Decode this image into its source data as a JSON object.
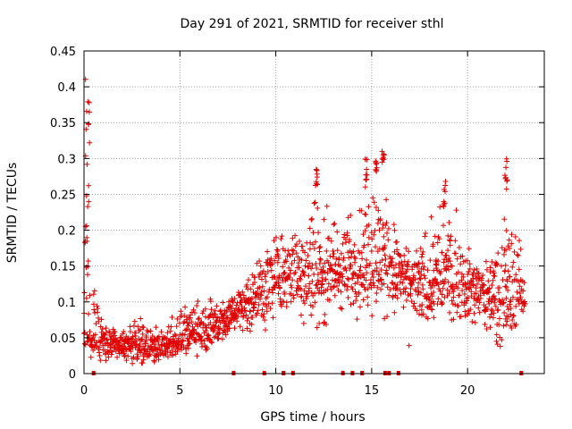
{
  "chart_data": {
    "type": "scatter",
    "title": "Day 291 of 2021, SRMTID for receiver sthl",
    "xlabel": "GPS time / hours",
    "ylabel": "SRMTID / TECUs",
    "xlim": [
      0,
      24
    ],
    "ylim": [
      0,
      0.45
    ],
    "x_ticks": [
      0,
      5,
      10,
      15,
      20
    ],
    "x_tick_labels": [
      "0",
      "5",
      "10",
      "15",
      "20"
    ],
    "y_ticks": [
      0,
      0.05,
      0.1,
      0.15,
      0.2,
      0.25,
      0.3,
      0.35,
      0.4,
      0.45
    ],
    "y_tick_labels": [
      "0",
      "0.05",
      "0.1",
      "0.15",
      "0.2",
      "0.25",
      "0.3",
      "0.35",
      "0.4",
      "0.45"
    ],
    "grid": true,
    "marker": "+",
    "color": "#e00000",
    "data_gap_markers_hours": [
      0.5,
      7.8,
      9.4,
      10.4,
      10.9,
      13.5,
      14.0,
      14.5,
      15.7,
      15.9,
      16.4,
      22.8
    ],
    "series": [
      {
        "name": "SRMTID",
        "envelope": [
          {
            "x": 0.0,
            "low": 0.03,
            "mid": 0.06,
            "high": 0.43
          },
          {
            "x": 0.5,
            "low": 0.02,
            "mid": 0.05,
            "high": 0.14
          },
          {
            "x": 1.0,
            "low": 0.01,
            "mid": 0.04,
            "high": 0.07
          },
          {
            "x": 2.0,
            "low": 0.01,
            "mid": 0.04,
            "high": 0.07
          },
          {
            "x": 3.0,
            "low": 0.01,
            "mid": 0.04,
            "high": 0.08
          },
          {
            "x": 4.0,
            "low": 0.01,
            "mid": 0.035,
            "high": 0.07
          },
          {
            "x": 5.0,
            "low": 0.02,
            "mid": 0.05,
            "high": 0.1
          },
          {
            "x": 6.0,
            "low": 0.02,
            "mid": 0.06,
            "high": 0.11
          },
          {
            "x": 7.0,
            "low": 0.03,
            "mid": 0.07,
            "high": 0.11
          },
          {
            "x": 8.0,
            "low": 0.05,
            "mid": 0.09,
            "high": 0.13
          },
          {
            "x": 9.0,
            "low": 0.05,
            "mid": 0.11,
            "high": 0.17
          },
          {
            "x": 10.0,
            "low": 0.06,
            "mid": 0.13,
            "high": 0.22
          },
          {
            "x": 11.0,
            "low": 0.08,
            "mid": 0.14,
            "high": 0.2
          },
          {
            "x": 12.0,
            "low": 0.05,
            "mid": 0.14,
            "high": 0.29
          },
          {
            "x": 13.0,
            "low": 0.06,
            "mid": 0.14,
            "high": 0.23
          },
          {
            "x": 14.0,
            "low": 0.07,
            "mid": 0.15,
            "high": 0.23
          },
          {
            "x": 15.0,
            "low": 0.06,
            "mid": 0.16,
            "high": 0.31
          },
          {
            "x": 16.0,
            "low": 0.07,
            "mid": 0.15,
            "high": 0.24
          },
          {
            "x": 17.0,
            "low": 0.04,
            "mid": 0.12,
            "high": 0.17
          },
          {
            "x": 18.0,
            "low": 0.05,
            "mid": 0.13,
            "high": 0.22
          },
          {
            "x": 19.0,
            "low": 0.07,
            "mid": 0.13,
            "high": 0.27
          },
          {
            "x": 20.0,
            "low": 0.06,
            "mid": 0.12,
            "high": 0.19
          },
          {
            "x": 21.0,
            "low": 0.05,
            "mid": 0.11,
            "high": 0.16
          },
          {
            "x": 22.0,
            "low": 0.03,
            "mid": 0.1,
            "high": 0.3
          },
          {
            "x": 23.0,
            "low": 0.08,
            "mid": 0.11,
            "high": 0.15
          }
        ],
        "spikes": [
          {
            "x": 0.1,
            "low": 0.18,
            "high": 0.43
          },
          {
            "x": 0.25,
            "low": 0.22,
            "high": 0.39
          },
          {
            "x": 12.1,
            "low": 0.26,
            "high": 0.29
          },
          {
            "x": 14.7,
            "low": 0.26,
            "high": 0.31
          },
          {
            "x": 15.2,
            "low": 0.28,
            "high": 0.31
          },
          {
            "x": 15.6,
            "low": 0.29,
            "high": 0.31
          },
          {
            "x": 18.8,
            "low": 0.23,
            "high": 0.27
          },
          {
            "x": 22.0,
            "low": 0.24,
            "high": 0.3
          }
        ]
      }
    ]
  }
}
